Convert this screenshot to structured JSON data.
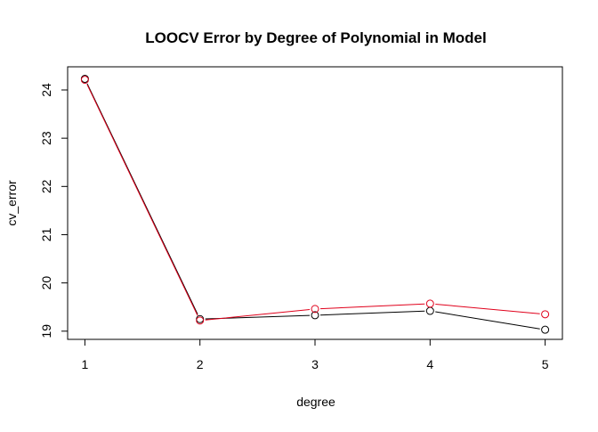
{
  "chart_data": {
    "type": "line",
    "title": "LOOCV Error by Degree of Polynomial in Model",
    "xlabel": "degree",
    "ylabel": "cv_error",
    "xlim": [
      0.85,
      5.15
    ],
    "ylim": [
      18.83,
      24.48
    ],
    "x_ticks": [
      1,
      2,
      3,
      4,
      5
    ],
    "y_ticks": [
      19,
      20,
      21,
      22,
      23,
      24
    ],
    "grid": false,
    "legend": "none",
    "x": [
      1,
      2,
      3,
      4,
      5
    ],
    "series": [
      {
        "color": "#000000",
        "marker": "open-circle",
        "values": [
          24.23,
          19.25,
          19.33,
          19.42,
          19.03
        ]
      },
      {
        "color": "#e0001b",
        "marker": "open-circle",
        "values": [
          24.21,
          19.22,
          19.46,
          19.57,
          19.35
        ]
      }
    ]
  }
}
